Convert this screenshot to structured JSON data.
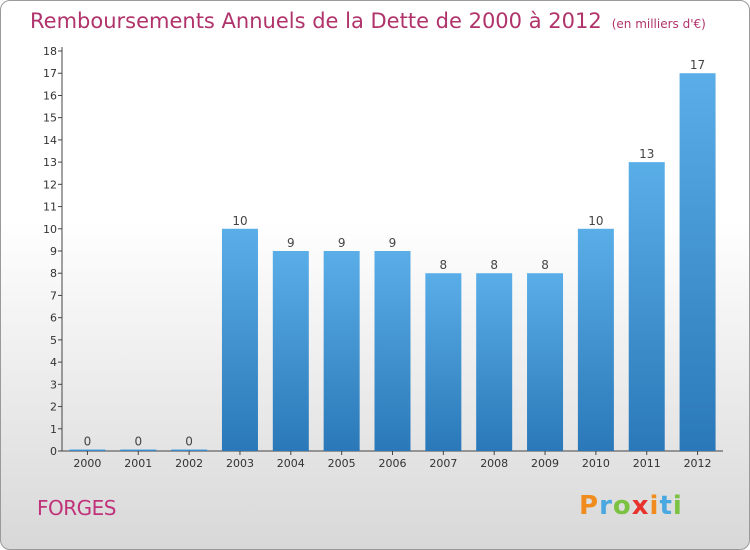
{
  "chart_data": {
    "type": "bar",
    "title": "Remboursements Annuels de la Dette de 2000 à 2012",
    "subtitle": "(en milliers d'€)",
    "categories": [
      "2000",
      "2001",
      "2002",
      "2003",
      "2004",
      "2005",
      "2006",
      "2007",
      "2008",
      "2009",
      "2010",
      "2011",
      "2012"
    ],
    "values": [
      0,
      0,
      0,
      10,
      9,
      9,
      9,
      8,
      8,
      8,
      10,
      13,
      17
    ],
    "ylim": [
      0,
      18
    ],
    "yticks": [
      0,
      1,
      2,
      3,
      4,
      5,
      6,
      7,
      8,
      9,
      10,
      11,
      12,
      13,
      14,
      15,
      16,
      17,
      18
    ],
    "xlabel": "",
    "ylabel": "",
    "grid": false,
    "colors": {
      "bar_light": "#5aaee8",
      "bar_dark": "#2a78b8",
      "title": "#b0336b"
    }
  },
  "footer": {
    "commune": "FORGES",
    "logo": "Proxiti"
  }
}
